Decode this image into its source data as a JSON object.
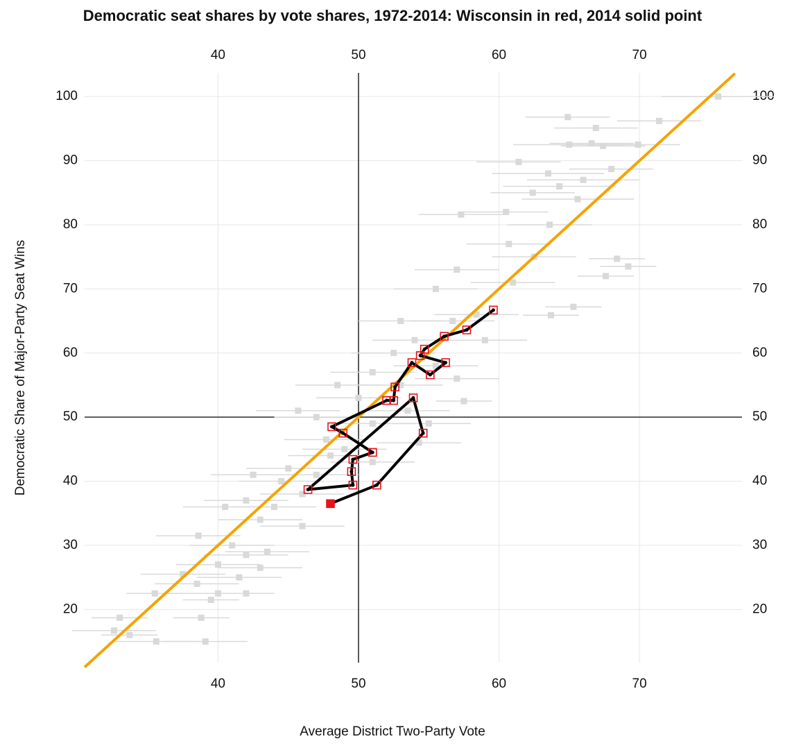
{
  "chart_data": {
    "type": "scatter",
    "title": "Democratic seat shares by vote shares, 1972-2014: Wisconsin in red, 2014 solid point",
    "xlabel": "Average District Two-Party Vote",
    "ylabel": "Democratic Share of Major-Party Seat Wins",
    "xlim": [
      30.5,
      77.3
    ],
    "ylim": [
      11.7,
      103.7
    ],
    "xticks": [
      40,
      50,
      60,
      70
    ],
    "yticks": [
      20,
      30,
      40,
      50,
      60,
      70,
      80,
      90,
      100
    ],
    "grid": true,
    "reference": {
      "x": 50,
      "y": 50
    },
    "fit": {
      "color": "#f5a300",
      "x": [
        30.5,
        76.8
      ],
      "values": [
        11,
        103.6
      ]
    },
    "series": [
      {
        "color": "#d9d9d9",
        "x": [
          75.6,
          64.9,
          71.4,
          66.9,
          65,
          66.6,
          67.4,
          69.9,
          61.4,
          63.5,
          66,
          64.3,
          68,
          62.4,
          65.6,
          60.5,
          63.6,
          57.3,
          60.7,
          62.5,
          68.4,
          69.2,
          67.6,
          61,
          57,
          55.5,
          65.3,
          63.7,
          58.4,
          56.7,
          53,
          59,
          54,
          52.5,
          55.5,
          51,
          57,
          48.5,
          53,
          50,
          57.5,
          53.5,
          45.7,
          47,
          51,
          55,
          47.7,
          49,
          54.3,
          48,
          51,
          45,
          42.5,
          47,
          44.5,
          46,
          42,
          44,
          40.5,
          43,
          46,
          38.6,
          41,
          42,
          43.5,
          40,
          37.5,
          43,
          41.5,
          38.5,
          40,
          42,
          35.5,
          39.5,
          38.8,
          33,
          32.6,
          33.7,
          35.6,
          39.1
        ],
        "values": [
          100,
          96.8,
          96.2,
          95.1,
          92.5,
          92.7,
          92.3,
          92.5,
          89.8,
          88,
          87,
          86,
          88.7,
          85,
          84,
          82,
          80,
          81.6,
          77,
          75,
          74.7,
          73.5,
          72,
          71,
          73,
          70,
          67.2,
          65.9,
          66,
          65,
          65,
          62,
          62,
          60,
          58,
          57,
          56,
          55,
          55,
          53,
          52.5,
          51,
          51,
          50,
          49,
          49,
          46.5,
          45,
          46,
          44,
          43,
          42,
          41,
          41,
          40,
          38,
          37,
          36,
          36,
          34,
          33,
          31.5,
          30,
          28.5,
          29,
          27,
          25.5,
          26.5,
          25,
          24,
          22.5,
          22.5,
          22.5,
          21.5,
          18.7,
          18.7,
          16.7,
          16,
          15,
          15
        ],
        "xerr": [
          4,
          3,
          3,
          3,
          4,
          3,
          3,
          3,
          3,
          4,
          4,
          4,
          3,
          3,
          4,
          3,
          3,
          3,
          3,
          3,
          2,
          2,
          2,
          3,
          3,
          3,
          2,
          2,
          3,
          3,
          3,
          3,
          3,
          3,
          3,
          3,
          3,
          3,
          3,
          3,
          2,
          3,
          3,
          3,
          3,
          3,
          3,
          3,
          3,
          3,
          3,
          3,
          3,
          3,
          3,
          3,
          3,
          3,
          3,
          3,
          3,
          3,
          3,
          3,
          3,
          3,
          3,
          3,
          3,
          3,
          3,
          2,
          2,
          2,
          2,
          2,
          3,
          2,
          3,
          3
        ]
      },
      {
        "color": "#e8121b",
        "line_color": "#000000",
        "solid_last": true,
        "x": [
          59.6,
          57.7,
          56.1,
          54.7,
          54.4,
          56.2,
          55.1,
          53.8,
          52.6,
          52.5,
          52.0,
          48.1,
          48.9,
          51.0,
          49.6,
          49.5,
          49.6,
          46.4,
          53.9,
          54.6,
          51.3,
          48.0
        ],
        "values": [
          66.7,
          63.6,
          62.6,
          60.6,
          59.6,
          58.5,
          56.6,
          58.5,
          54.7,
          52.6,
          52.6,
          48.5,
          47.5,
          44.5,
          43.4,
          41.5,
          39.4,
          38.7,
          53.0,
          47.5,
          39.4,
          36.5
        ]
      }
    ]
  }
}
